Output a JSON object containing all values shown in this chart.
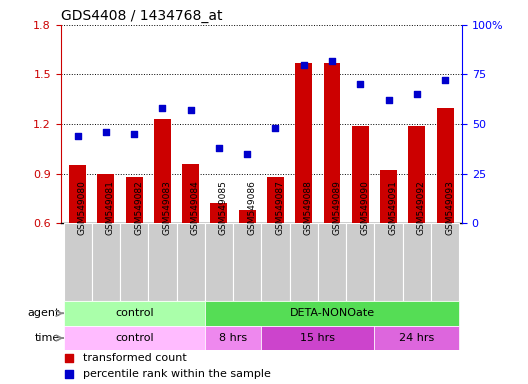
{
  "title": "GDS4408 / 1434768_at",
  "samples": [
    "GSM549080",
    "GSM549081",
    "GSM549082",
    "GSM549083",
    "GSM549084",
    "GSM549085",
    "GSM549086",
    "GSM549087",
    "GSM549088",
    "GSM549089",
    "GSM549090",
    "GSM549091",
    "GSM549092",
    "GSM549093"
  ],
  "transformed_count": [
    0.95,
    0.9,
    0.88,
    1.23,
    0.96,
    0.72,
    0.68,
    0.88,
    1.57,
    1.57,
    1.19,
    0.92,
    1.19,
    1.3
  ],
  "percentile_rank": [
    44,
    46,
    45,
    58,
    57,
    38,
    35,
    48,
    80,
    82,
    70,
    62,
    65,
    72
  ],
  "ylim_left": [
    0.6,
    1.8
  ],
  "ylim_right": [
    0,
    100
  ],
  "yticks_left": [
    0.6,
    0.9,
    1.2,
    1.5,
    1.8
  ],
  "yticks_right": [
    0,
    25,
    50,
    75,
    100
  ],
  "bar_color": "#cc0000",
  "dot_color": "#0000cc",
  "agent_groups": [
    {
      "label": "control",
      "start": 0,
      "end": 5,
      "color": "#aaffaa"
    },
    {
      "label": "DETA-NONOate",
      "start": 5,
      "end": 14,
      "color": "#55dd55"
    }
  ],
  "time_groups": [
    {
      "label": "control",
      "start": 0,
      "end": 5,
      "color": "#ffbbff"
    },
    {
      "label": "8 hrs",
      "start": 5,
      "end": 7,
      "color": "#ee88ee"
    },
    {
      "label": "15 hrs",
      "start": 7,
      "end": 11,
      "color": "#cc44cc"
    },
    {
      "label": "24 hrs",
      "start": 11,
      "end": 14,
      "color": "#dd66dd"
    }
  ],
  "grid_color": "black",
  "legend_items": [
    {
      "label": "transformed count",
      "color": "#cc0000"
    },
    {
      "label": "percentile rank within the sample",
      "color": "#0000cc"
    }
  ],
  "left_axis_color": "#cc0000",
  "right_axis_color": "#0000ff",
  "tick_label_bg": "#cccccc"
}
